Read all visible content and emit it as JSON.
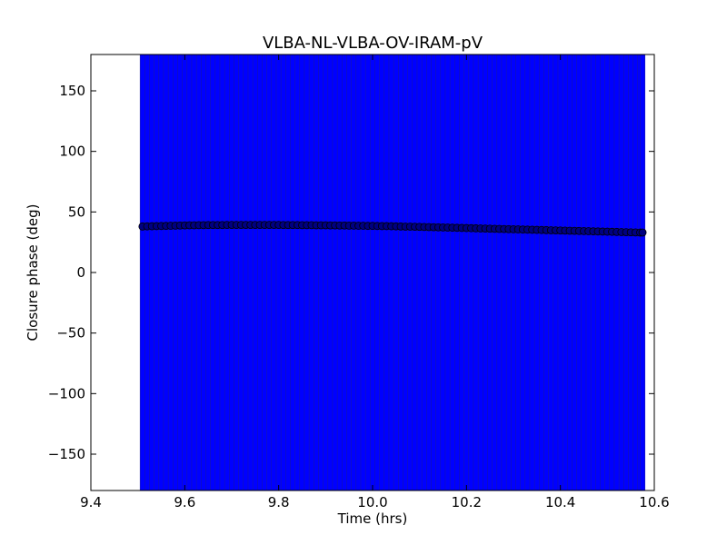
{
  "chart_data": {
    "type": "scatter",
    "title": "VLBA-NL-VLBA-OV-IRAM-pV",
    "xlabel": "Time (hrs)",
    "ylabel": "Closure phase (deg)",
    "xlim": [
      9.4,
      10.6
    ],
    "ylim": [
      -180,
      180
    ],
    "x_ticks": [
      9.4,
      9.6,
      9.8,
      10.0,
      10.2,
      10.4,
      10.6
    ],
    "x_tick_labels": [
      "9.4",
      "9.6",
      "9.8",
      "10.0",
      "10.2",
      "10.4",
      "10.6"
    ],
    "y_ticks": [
      150,
      100,
      50,
      0,
      -50,
      -100,
      -150
    ],
    "y_tick_labels": [
      "150",
      "100",
      "50",
      "0",
      "−50",
      "−100",
      "−150"
    ],
    "grid": false,
    "error_bars": "full range (±180 deg)",
    "colors": {
      "error_bar": "#0000ff",
      "marker": "#000080"
    },
    "series": [
      {
        "x": [
          9.51,
          9.52,
          9.53,
          9.54,
          9.55,
          9.56,
          9.57,
          9.58,
          9.59,
          9.6,
          9.61,
          9.62,
          9.63,
          9.64,
          9.65,
          9.66,
          9.67,
          9.68,
          9.69,
          9.7,
          9.71,
          9.72,
          9.73,
          9.74,
          9.75,
          9.76,
          9.77,
          9.78,
          9.79,
          9.8,
          9.81,
          9.82,
          9.83,
          9.84,
          9.85,
          9.86,
          9.87,
          9.88,
          9.89,
          9.9,
          9.91,
          9.92,
          9.93,
          9.94,
          9.95,
          9.96,
          9.97,
          9.98,
          9.99,
          10.0,
          10.01,
          10.02,
          10.03,
          10.04,
          10.05,
          10.06,
          10.07,
          10.08,
          10.09,
          10.1,
          10.11,
          10.12,
          10.13,
          10.14,
          10.15,
          10.16,
          10.17,
          10.18,
          10.19,
          10.2,
          10.21,
          10.22,
          10.23,
          10.24,
          10.25,
          10.26,
          10.27,
          10.28,
          10.29,
          10.3,
          10.31,
          10.32,
          10.33,
          10.34,
          10.35,
          10.36,
          10.37,
          10.38,
          10.39,
          10.4,
          10.41,
          10.42,
          10.43,
          10.44,
          10.45,
          10.46,
          10.47,
          10.48,
          10.49,
          10.5,
          10.51,
          10.52,
          10.53,
          10.54,
          10.55,
          10.56,
          10.57,
          10.575
        ],
        "y": [
          38.0,
          38.1,
          38.2,
          38.3,
          38.4,
          38.5,
          38.6,
          38.7,
          38.8,
          38.9,
          39.0,
          39.0,
          39.1,
          39.1,
          39.2,
          39.2,
          39.2,
          39.2,
          39.3,
          39.3,
          39.3,
          39.3,
          39.3,
          39.3,
          39.3,
          39.3,
          39.3,
          39.3,
          39.3,
          39.3,
          39.2,
          39.2,
          39.2,
          39.2,
          39.1,
          39.1,
          39.1,
          39.0,
          39.0,
          39.0,
          38.9,
          38.9,
          38.8,
          38.8,
          38.7,
          38.7,
          38.6,
          38.6,
          38.5,
          38.5,
          38.4,
          38.3,
          38.3,
          38.2,
          38.1,
          38.0,
          37.9,
          37.9,
          37.8,
          37.7,
          37.6,
          37.5,
          37.4,
          37.3,
          37.2,
          37.1,
          37.0,
          36.9,
          36.8,
          36.7,
          36.6,
          36.5,
          36.4,
          36.3,
          36.2,
          36.1,
          36.0,
          35.9,
          35.8,
          35.7,
          35.6,
          35.5,
          35.4,
          35.3,
          35.2,
          35.1,
          35.0,
          34.9,
          34.8,
          34.7,
          34.6,
          34.5,
          34.4,
          34.3,
          34.2,
          34.1,
          34.0,
          33.9,
          33.8,
          33.7,
          33.6,
          33.5,
          33.4,
          33.3,
          33.2,
          33.1,
          33.0,
          33.0
        ]
      }
    ]
  }
}
